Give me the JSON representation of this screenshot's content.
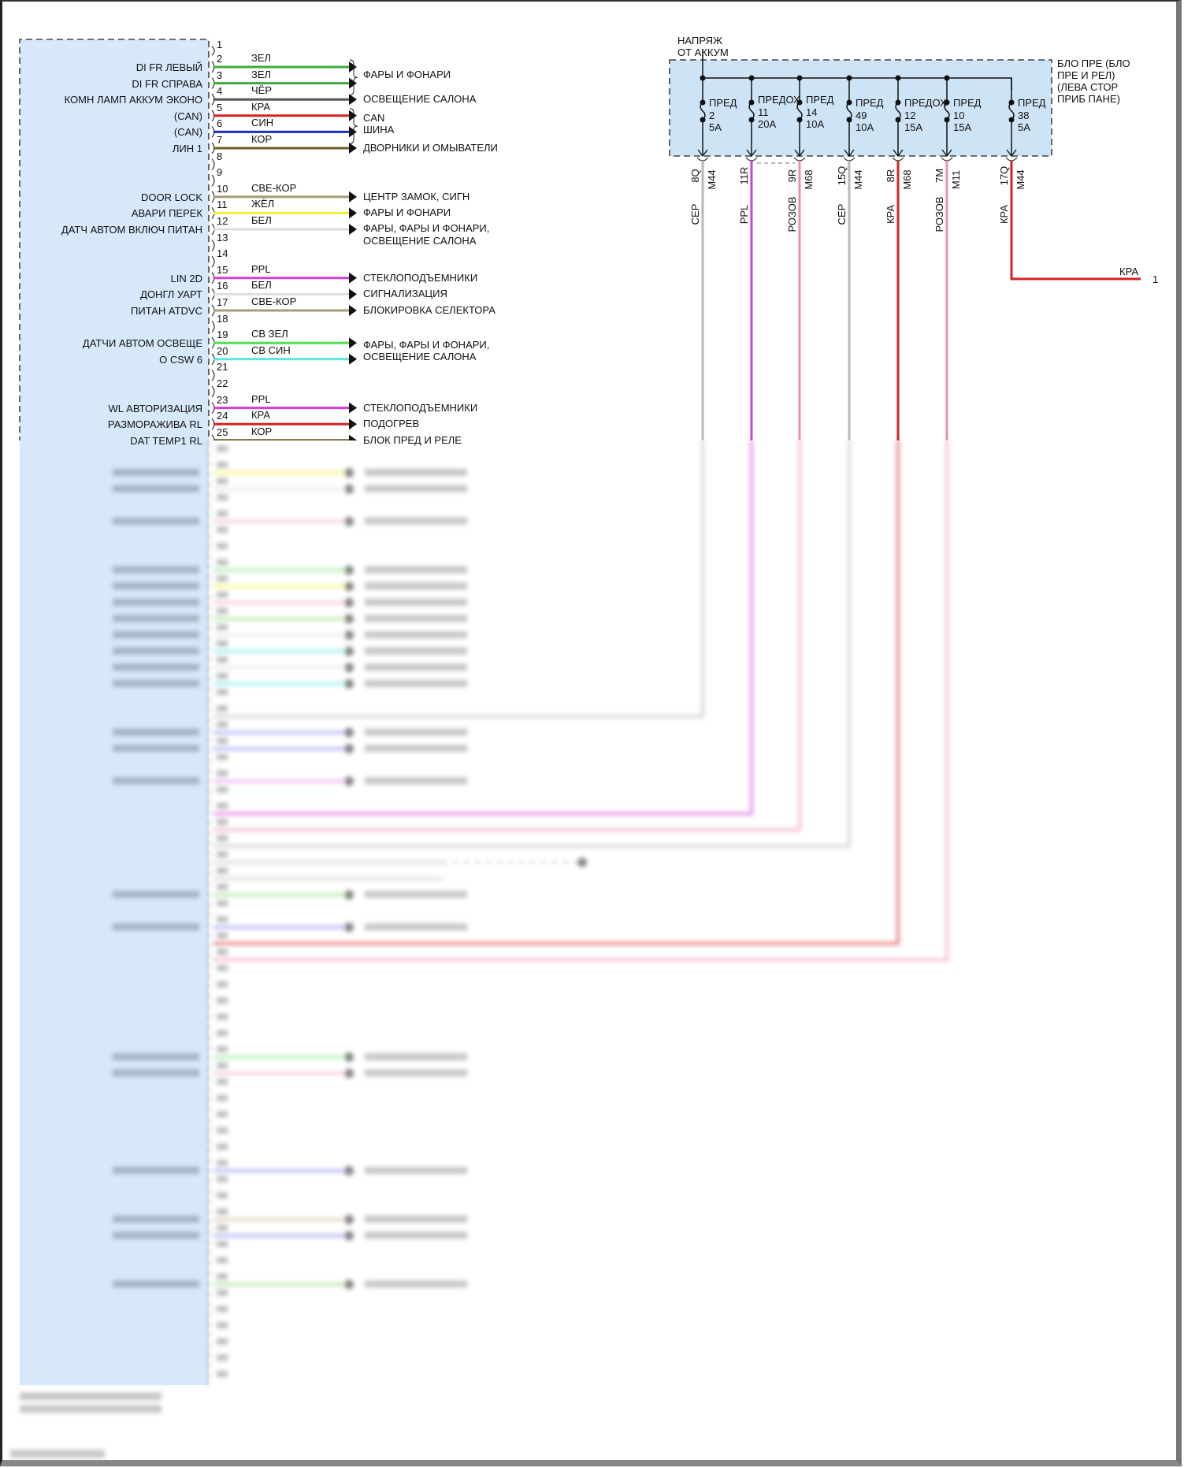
{
  "connector": {
    "first_pin": "1",
    "pins": [
      {
        "pin": "2",
        "signal": "DI FR ЛЕВЫЙ",
        "wire": "ЗЕЛ",
        "color": "#3daa3d"
      },
      {
        "pin": "3",
        "signal": "DI FR СПРАВА",
        "wire": "ЗЕЛ",
        "color": "#3daa3d"
      },
      {
        "pin": "4",
        "signal": "КОМН ЛАМП АККУМ ЭКОНО",
        "wire": "ЧЁР",
        "color": "#555555",
        "dest": "ОСВЕЩЕНИЕ САЛОНА"
      },
      {
        "pin": "5",
        "signal": "(CAN)",
        "wire": "КРА",
        "color": "#d42222"
      },
      {
        "pin": "6",
        "signal": "(CAN)",
        "wire": "СИН",
        "color": "#1c2fc4"
      },
      {
        "pin": "7",
        "signal": "ЛИН 1",
        "wire": "КОР",
        "color": "#6e5c22",
        "dest": "ДВОРНИКИ И ОМЫВАТЕЛИ"
      },
      {
        "pin": "8"
      },
      {
        "pin": "9"
      },
      {
        "pin": "10",
        "signal": "DOOR LOCK",
        "wire": "СВЕ-КОР",
        "color": "#a59b78",
        "dest": "ЦЕНТР ЗАМОК, СИГН"
      },
      {
        "pin": "11",
        "signal": "АВАРИ ПЕРЕК",
        "wire": "ЖЁЛ",
        "color": "#f0f03a",
        "dest": "ФАРЫ И ФОНАРИ"
      },
      {
        "pin": "12",
        "signal": "ДАТЧ АВТОМ ВКЛЮЧ ПИТАН",
        "wire": "БЕЛ",
        "color": "#dedede",
        "dest": "ФАРЫ, ФАРЫ И ФОНАРИ,",
        "dest2": "ОСВЕЩЕНИЕ САЛОНА"
      },
      {
        "pin": "13"
      },
      {
        "pin": "14"
      },
      {
        "pin": "15",
        "signal": "LIN 2D",
        "wire": "PPL",
        "color": "#d23ed2",
        "dest": "СТЕКЛОПОДЪЕМНИКИ"
      },
      {
        "pin": "16",
        "signal": "ДОНГЛ УАРТ",
        "wire": "БЕЛ",
        "color": "#dedede",
        "dest": "СИГНАЛИЗАЦИЯ"
      },
      {
        "pin": "17",
        "signal": "ПИТАН ATDVC",
        "wire": "СВЕ-КОР",
        "color": "#a59b78",
        "dest": "БЛОКИРОВКА СЕЛЕКТОРА"
      },
      {
        "pin": "18"
      },
      {
        "pin": "19",
        "signal": "ДАТЧИ АВТОМ ОСВЕЩЕ",
        "wire": "СВ ЗЕЛ",
        "color": "#4ede4e"
      },
      {
        "pin": "20",
        "signal": "O CSW 6",
        "wire": "СВ СИН",
        "color": "#5ae4e4"
      },
      {
        "pin": "21"
      },
      {
        "pin": "22"
      },
      {
        "pin": "23",
        "signal": "WL АВТОРИЗАЦИЯ",
        "wire": "PPL",
        "color": "#d23ed2",
        "dest": "СТЕКЛОПОДЪЕМНИКИ"
      },
      {
        "pin": "24",
        "signal": "РАЗМОРАЖИВА RL",
        "wire": "КРА",
        "color": "#d42222",
        "dest": "ПОДОГРЕВ"
      },
      {
        "pin": "25",
        "signal": "DAT TEMP1 RL",
        "wire": "КОР",
        "color": "#6e5c22",
        "dest": "БЛОК ПРЕД И РЕЛЕ"
      }
    ],
    "groups": [
      {
        "pins": [
          "2",
          "3"
        ],
        "lines": [
          "ФАРЫ И ФОНАРИ"
        ],
        "brace": true
      },
      {
        "pins": [
          "5",
          "6"
        ],
        "lines": [
          "CAN",
          "ШИНА"
        ],
        "brace": true
      },
      {
        "pins": [
          "19",
          "20"
        ],
        "lines": [
          "ФАРЫ, ФАРЫ И ФОНАРИ,",
          "ОСВЕЩЕНИЕ САЛОНА"
        ],
        "brace": false
      }
    ]
  },
  "fuse_box": {
    "supply_label": [
      "НАПРЯЖ",
      "ОТ АККУМ"
    ],
    "title": [
      "БЛО ПРЕ (БЛО",
      "ПРЕ И РЕЛ)",
      "(ЛЕВА СТОР",
      "ПРИБ ПАНЕ)"
    ],
    "fuses": [
      {
        "label": "ПРЕД",
        "num": "2",
        "rating": "5A",
        "pin": "8Q",
        "conn": "M44",
        "wire": "СЕР",
        "color": "#b8b8b8"
      },
      {
        "label": "ПРЕДОХ",
        "num": "11",
        "rating": "20A",
        "pin": "11R",
        "conn": "",
        "wire": "PPL",
        "color": "#d23ed2"
      },
      {
        "label": "ПРЕД",
        "num": "14",
        "rating": "10A",
        "pin": "9R",
        "conn": "M68",
        "wire": "РОЗОВ",
        "color": "#ec8fae"
      },
      {
        "label": "ПРЕД",
        "num": "49",
        "rating": "10A",
        "pin": "15Q",
        "conn": "M44",
        "wire": "СЕР",
        "color": "#b8b8b8"
      },
      {
        "label": "ПРЕДОХ",
        "num": "12",
        "rating": "15A",
        "pin": "8R",
        "conn": "M68",
        "wire": "КРА",
        "color": "#d42222"
      },
      {
        "label": "ПРЕД",
        "num": "10",
        "rating": "15A",
        "pin": "7M",
        "conn": "M11",
        "wire": "РОЗОВ",
        "color": "#ec8fae"
      },
      {
        "label": "ПРЕД",
        "num": "38",
        "rating": "5A",
        "pin": "17Q",
        "conn": "M44",
        "wire": "КРА",
        "color": "#d42222"
      }
    ],
    "output": {
      "wire": "КРА",
      "pin": "1"
    }
  },
  "colors": {
    "module_fill": "#d6e8f9",
    "fuse_box_fill": "#cfe3f6",
    "border": "#444444"
  }
}
